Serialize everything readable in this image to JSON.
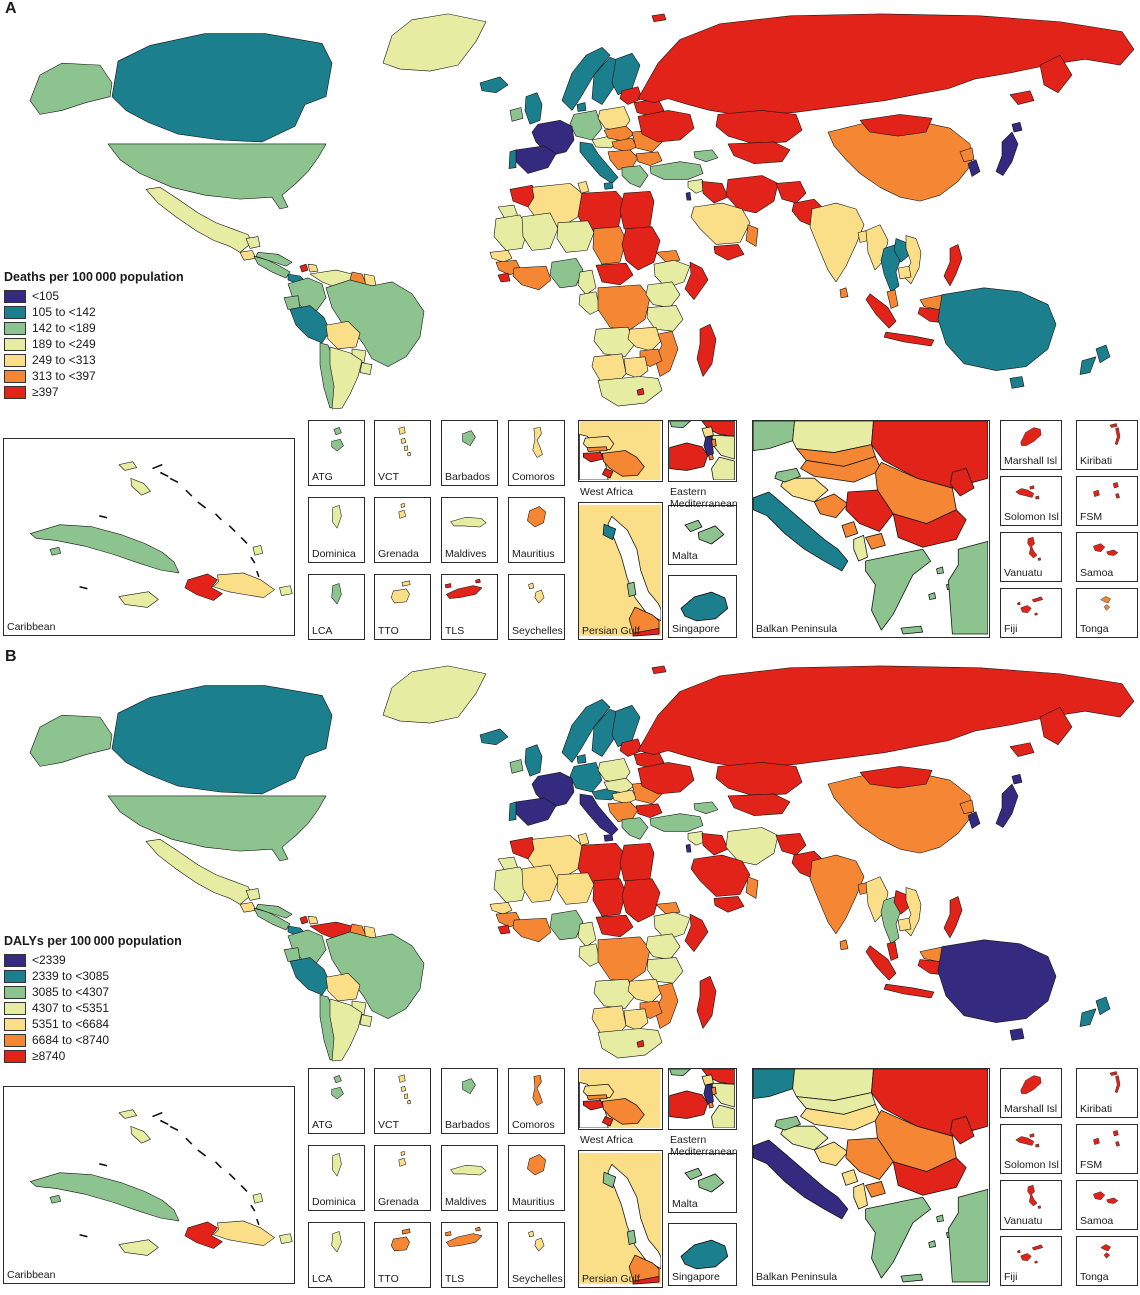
{
  "colors": {
    "navy": "#342a80",
    "teal": "#1c7f8e",
    "green": "#8cc38f",
    "pale": "#e7eca3",
    "yellow": "#fbdf88",
    "orange": "#f58634",
    "red": "#e2231a"
  },
  "inset_labels": {
    "caribbean": "Caribbean",
    "atg": "ATG",
    "vct": "VCT",
    "barbados": "Barbados",
    "comoros": "Comoros",
    "dominica": "Dominica",
    "grenada": "Grenada",
    "maldives": "Maldives",
    "mauritius": "Mauritius",
    "lca": "LCA",
    "tto": "TTO",
    "tls": "TLS",
    "seychelles": "Seychelles",
    "west_africa": "West Africa",
    "eastern_med_line1": "Eastern",
    "eastern_med_line2": "Mediterranean",
    "persian_gulf": "Persian Gulf",
    "malta": "Malta",
    "singapore": "Singapore",
    "balkan": "Balkan Peninsula",
    "marshall": "Marshall Isl",
    "kiribati": "Kiribati",
    "solomon": "Solomon Isl",
    "fsm": "FSM",
    "vanuatu": "Vanuatu",
    "samoa": "Samoa",
    "fiji": "Fiji",
    "tonga": "Tonga"
  },
  "panels": [
    {
      "label": "A",
      "legend": {
        "title": "Deaths per 100 000 population",
        "classes": [
          {
            "label": "<105",
            "color": "#342a80"
          },
          {
            "label": "105 to <142",
            "color": "#1c7f8e"
          },
          {
            "label": "142 to <189",
            "color": "#8cc38f"
          },
          {
            "label": "189 to <249",
            "color": "#e7eca3"
          },
          {
            "label": "249 to <313",
            "color": "#fbdf88"
          },
          {
            "label": "313 to <397",
            "color": "#f58634"
          },
          {
            "label": "≥397",
            "color": "#e2231a"
          }
        ]
      },
      "world": {
        "alaska": "green",
        "canada": "teal",
        "greenland": "pale",
        "usa": "green",
        "mexico": "pale",
        "yucatan": "pale",
        "guatemala": "yellow",
        "camerica": "green",
        "panama": "teal",
        "cuba": "green",
        "haiti": "red",
        "domrep": "yellow",
        "colombia": "green",
        "venezuela": "pale",
        "guyana": "orange",
        "suriname": "yellow",
        "ecuador": "green",
        "peru": "teal",
        "brazil": "green",
        "bolivia": "yellow",
        "paraguay": "pale",
        "chile": "green",
        "argentina": "pale",
        "uruguay": "pale",
        "iceland": "teal",
        "ireland": "green",
        "uk": "teal",
        "norway": "teal",
        "sweden": "teal",
        "finland": "teal",
        "denmark": "teal",
        "baltics": "red",
        "germany": "green",
        "france": "navy",
        "spain": "navy",
        "portugal": "teal",
        "italy": "teal",
        "sicily": "teal",
        "alpine": "pale",
        "poland": "yellow",
        "czechoslovakia": "orange",
        "hungary": "orange",
        "balkans": "orange",
        "romania": "orange",
        "bulgaria": "orange",
        "greece": "green",
        "belarus": "red",
        "ukraine": "red",
        "russia": "red",
        "fareast1": "red",
        "fareast2": "red",
        "svalbard": "red",
        "kazakhstan": "red",
        "centralasia": "red",
        "caucasus": "green",
        "turkey": "green",
        "levant": "pale",
        "israel": "navy",
        "iraq": "red",
        "iran": "red",
        "afghanistan": "red",
        "pakistan": "red",
        "saudi": "yellow",
        "yemen": "red",
        "oman": "orange",
        "india": "yellow",
        "srilanka": "orange",
        "bangladesh": "yellow",
        "china": "orange",
        "mongolia": "red",
        "japan": "navy",
        "hokkaido": "navy",
        "skorea": "navy",
        "nkorea": "orange",
        "myanmar": "yellow",
        "thailand": "teal",
        "laos": "teal",
        "vietnam": "yellow",
        "cambodia": "yellow",
        "malaysia": "orange",
        "borneomy": "orange",
        "borneoid": "red",
        "sumatra": "red",
        "java": "red",
        "sulawesi": "red",
        "moluccas1": "red",
        "moluccas2": "red",
        "philippines": "red",
        "png": "red",
        "morocco": "red",
        "wsahara": "pale",
        "algeria": "yellow",
        "tunisia": "yellow",
        "libya": "red",
        "egypt": "red",
        "mauritania": "pale",
        "mali": "pale",
        "niger": "pale",
        "chad": "orange",
        "sudan": "red",
        "eritrea": "orange",
        "ethiopia": "pale",
        "somalia": "red",
        "senegal": "yellow",
        "guinea": "orange",
        "sierraleone": "red",
        "ivory": "orange",
        "nigeria": "green",
        "cameroon": "pale",
        "car": "red",
        "congo": "pale",
        "drc": "orange",
        "ugandakenya": "pale",
        "tanzania": "pale",
        "angola": "pale",
        "zambia": "yellow",
        "mozambique": "orange",
        "zimbabwe": "orange",
        "namibia": "yellow",
        "botswana": "yellow",
        "southafrica": "pale",
        "lesotho": "red",
        "madagascar": "red",
        "australia": "teal",
        "tasmania": "teal",
        "nznorth": "teal",
        "nzsouth": "teal"
      },
      "caribbean": {
        "cuba": "green",
        "islejuv": "green",
        "bahamas": "pale",
        "jamaica": "pale",
        "haiti": "red",
        "domrep": "yellow",
        "puertorico": "pale",
        "guadeloupe": "pale"
      },
      "west_africa": {
        "bg": "yellow",
        "senegal": "yellow",
        "gambia": "orange",
        "guineabissau": "red",
        "guinea": "orange",
        "sierraleone": "red"
      },
      "eastern_med": {
        "turkey": "green",
        "syria_n": "red",
        "lebanon": "yellow",
        "jordan": "pale",
        "israel": "navy",
        "palestine": "orange",
        "egypt": "red",
        "saudi": "pale"
      },
      "persian_gulf": {
        "bg": "yellow",
        "kuwait": "teal",
        "qatar": "green",
        "uae": "orange",
        "red_strip": "red"
      },
      "malta": "green",
      "singapore": "teal",
      "balkan": {
        "tl": "green",
        "top": "pale",
        "ukraine": "red",
        "slovakia": "orange",
        "hungary": "orange",
        "romania": "orange",
        "moldova": "red",
        "croatia": "yellow",
        "bosnia": "orange",
        "serbia": "red",
        "slovenia": "green",
        "montenegro": "orange",
        "albania": "pale",
        "macedonia": "orange",
        "bulgaria": "red",
        "greece": "green",
        "italy": "teal",
        "turkey": "green"
      },
      "islands": {
        "atg": "green",
        "vct": "yellow",
        "barbados": "green",
        "comoros": "yellow",
        "dominica": "pale",
        "grenada": "yellow",
        "maldives": "pale",
        "mauritius": "orange",
        "lca": "green",
        "tto": "yellow",
        "tls": "red",
        "seychelles": "yellow",
        "marshall": "red",
        "kiribati": "red",
        "solomon": "red",
        "fsm": "red",
        "vanuatu": "red",
        "samoa": "red",
        "fiji": "red",
        "tonga": "orange"
      }
    },
    {
      "label": "B",
      "legend": {
        "title": "DALYs per 100 000 population",
        "classes": [
          {
            "label": "<2339",
            "color": "#342a80"
          },
          {
            "label": "2339 to <3085",
            "color": "#1c7f8e"
          },
          {
            "label": "3085 to <4307",
            "color": "#8cc38f"
          },
          {
            "label": "4307 to <5351",
            "color": "#e7eca3"
          },
          {
            "label": "5351 to <6684",
            "color": "#fbdf88"
          },
          {
            "label": "6684 to <8740",
            "color": "#f58634"
          },
          {
            "label": "≥8740",
            "color": "#e2231a"
          }
        ]
      },
      "world": {
        "alaska": "green",
        "canada": "teal",
        "greenland": "pale",
        "usa": "green",
        "mexico": "pale",
        "yucatan": "pale",
        "guatemala": "yellow",
        "camerica": "green",
        "panama": "teal",
        "cuba": "green",
        "haiti": "red",
        "domrep": "yellow",
        "colombia": "green",
        "venezuela": "red",
        "guyana": "orange",
        "suriname": "yellow",
        "ecuador": "green",
        "peru": "teal",
        "brazil": "green",
        "bolivia": "yellow",
        "paraguay": "pale",
        "chile": "green",
        "argentina": "pale",
        "uruguay": "pale",
        "iceland": "teal",
        "ireland": "green",
        "uk": "teal",
        "norway": "teal",
        "sweden": "teal",
        "finland": "teal",
        "denmark": "teal",
        "baltics": "red",
        "germany": "teal",
        "france": "navy",
        "spain": "navy",
        "portugal": "teal",
        "italy": "navy",
        "sicily": "navy",
        "alpine": "teal",
        "poland": "pale",
        "czechoslovakia": "pale",
        "hungary": "yellow",
        "balkans": "orange",
        "romania": "orange",
        "bulgaria": "red",
        "greece": "green",
        "belarus": "red",
        "ukraine": "red",
        "russia": "red",
        "fareast1": "red",
        "fareast2": "red",
        "svalbard": "red",
        "kazakhstan": "red",
        "centralasia": "red",
        "caucasus": "green",
        "turkey": "green",
        "levant": "pale",
        "israel": "navy",
        "iraq": "red",
        "iran": "pale",
        "afghanistan": "red",
        "pakistan": "red",
        "saudi": "red",
        "yemen": "red",
        "oman": "orange",
        "india": "orange",
        "srilanka": "orange",
        "bangladesh": "orange",
        "china": "orange",
        "mongolia": "red",
        "japan": "navy",
        "hokkaido": "navy",
        "skorea": "navy",
        "nkorea": "orange",
        "myanmar": "yellow",
        "thailand": "green",
        "laos": "red",
        "vietnam": "yellow",
        "cambodia": "yellow",
        "malaysia": "red",
        "borneomy": "orange",
        "borneoid": "red",
        "sumatra": "red",
        "java": "red",
        "sulawesi": "red",
        "moluccas1": "red",
        "moluccas2": "red",
        "philippines": "red",
        "png": "red",
        "morocco": "red",
        "wsahara": "pale",
        "algeria": "yellow",
        "tunisia": "yellow",
        "libya": "red",
        "egypt": "red",
        "mauritania": "pale",
        "mali": "yellow",
        "niger": "yellow",
        "chad": "red",
        "sudan": "red",
        "eritrea": "orange",
        "ethiopia": "pale",
        "somalia": "red",
        "senegal": "yellow",
        "guinea": "orange",
        "sierraleone": "red",
        "ivory": "orange",
        "nigeria": "green",
        "cameroon": "pale",
        "car": "red",
        "congo": "pale",
        "drc": "orange",
        "ugandakenya": "pale",
        "tanzania": "pale",
        "angola": "pale",
        "zambia": "yellow",
        "mozambique": "orange",
        "zimbabwe": "orange",
        "namibia": "yellow",
        "botswana": "yellow",
        "southafrica": "pale",
        "lesotho": "red",
        "madagascar": "red",
        "australia": "navy",
        "tasmania": "navy",
        "nznorth": "teal",
        "nzsouth": "teal"
      },
      "caribbean": {
        "cuba": "green",
        "islejuv": "green",
        "bahamas": "pale",
        "jamaica": "pale",
        "haiti": "red",
        "domrep": "yellow",
        "puertorico": "pale",
        "guadeloupe": "pale"
      },
      "west_africa": {
        "bg": "yellow",
        "senegal": "yellow",
        "gambia": "orange",
        "guineabissau": "red",
        "guinea": "orange",
        "sierraleone": "red"
      },
      "eastern_med": {
        "turkey": "green",
        "syria_n": "red",
        "lebanon": "yellow",
        "jordan": "pale",
        "israel": "navy",
        "palestine": "orange",
        "egypt": "red",
        "saudi": "pale"
      },
      "persian_gulf": {
        "bg": "yellow",
        "kuwait": "green",
        "qatar": "green",
        "uae": "orange",
        "red_strip": "red"
      },
      "malta": "green",
      "singapore": "teal",
      "balkan": {
        "tl": "teal",
        "top": "pale",
        "ukraine": "red",
        "slovakia": "pale",
        "hungary": "yellow",
        "romania": "orange",
        "moldova": "red",
        "croatia": "pale",
        "bosnia": "yellow",
        "serbia": "orange",
        "slovenia": "green",
        "montenegro": "yellow",
        "albania": "yellow",
        "macedonia": "orange",
        "bulgaria": "red",
        "greece": "green",
        "italy": "navy",
        "turkey": "green"
      },
      "islands": {
        "atg": "green",
        "vct": "yellow",
        "barbados": "green",
        "comoros": "orange",
        "dominica": "pale",
        "grenada": "yellow",
        "maldives": "pale",
        "mauritius": "orange",
        "lca": "pale",
        "tto": "orange",
        "tls": "orange",
        "seychelles": "yellow",
        "marshall": "red",
        "kiribati": "red",
        "solomon": "red",
        "fsm": "red",
        "vanuatu": "red",
        "samoa": "red",
        "fiji": "red",
        "tonga": "red"
      }
    }
  ]
}
